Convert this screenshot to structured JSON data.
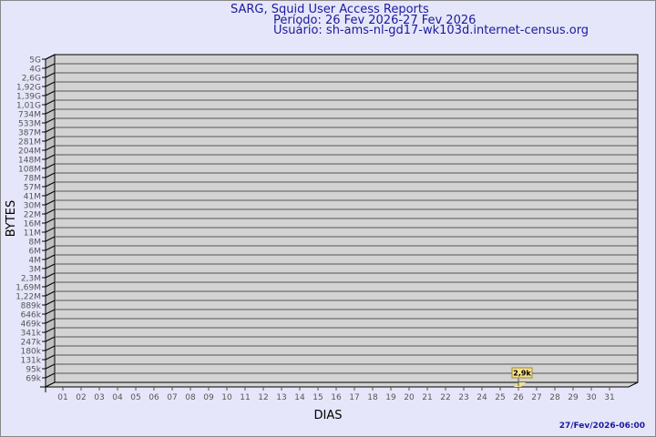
{
  "chart_data": {
    "type": "bar",
    "title": "SARG, Squid User Access Reports",
    "subtitle": [
      "Período: 26 Fev 2026-27 Fev 2026",
      "Usuário: sh-ams-nl-gd17-wk103d.internet-census.org"
    ],
    "xlabel": "DIAS",
    "ylabel": "BYTES",
    "categories": [
      "01",
      "02",
      "03",
      "04",
      "05",
      "06",
      "07",
      "08",
      "09",
      "10",
      "11",
      "12",
      "13",
      "14",
      "15",
      "16",
      "17",
      "18",
      "19",
      "20",
      "21",
      "22",
      "23",
      "24",
      "25",
      "26",
      "27",
      "28",
      "29",
      "30",
      "31"
    ],
    "y_tick_labels": [
      "5G",
      "4G",
      "2,6G",
      "1,92G",
      "1,39G",
      "1,01G",
      "734M",
      "533M",
      "387M",
      "281M",
      "204M",
      "148M",
      "108M",
      "78M",
      "57M",
      "41M",
      "30M",
      "22M",
      "16M",
      "11M",
      "8M",
      "6M",
      "4M",
      "3M",
      "2,3M",
      "1,69M",
      "1,22M",
      "889k",
      "646k",
      "469k",
      "341k",
      "247k",
      "180k",
      "131k",
      "95k",
      "69k"
    ],
    "y_scale": "log",
    "grid": true,
    "bars": [
      {
        "category": "26",
        "value": 2900,
        "label": "2,9k"
      }
    ],
    "footer": "27/Fev/2026-06:00",
    "colors": {
      "background": "#e6e6fa",
      "wall": "#d3d3d3",
      "side": "#c0c0c0",
      "bar": "#f5e08c",
      "title": "#1a1a9c"
    }
  }
}
